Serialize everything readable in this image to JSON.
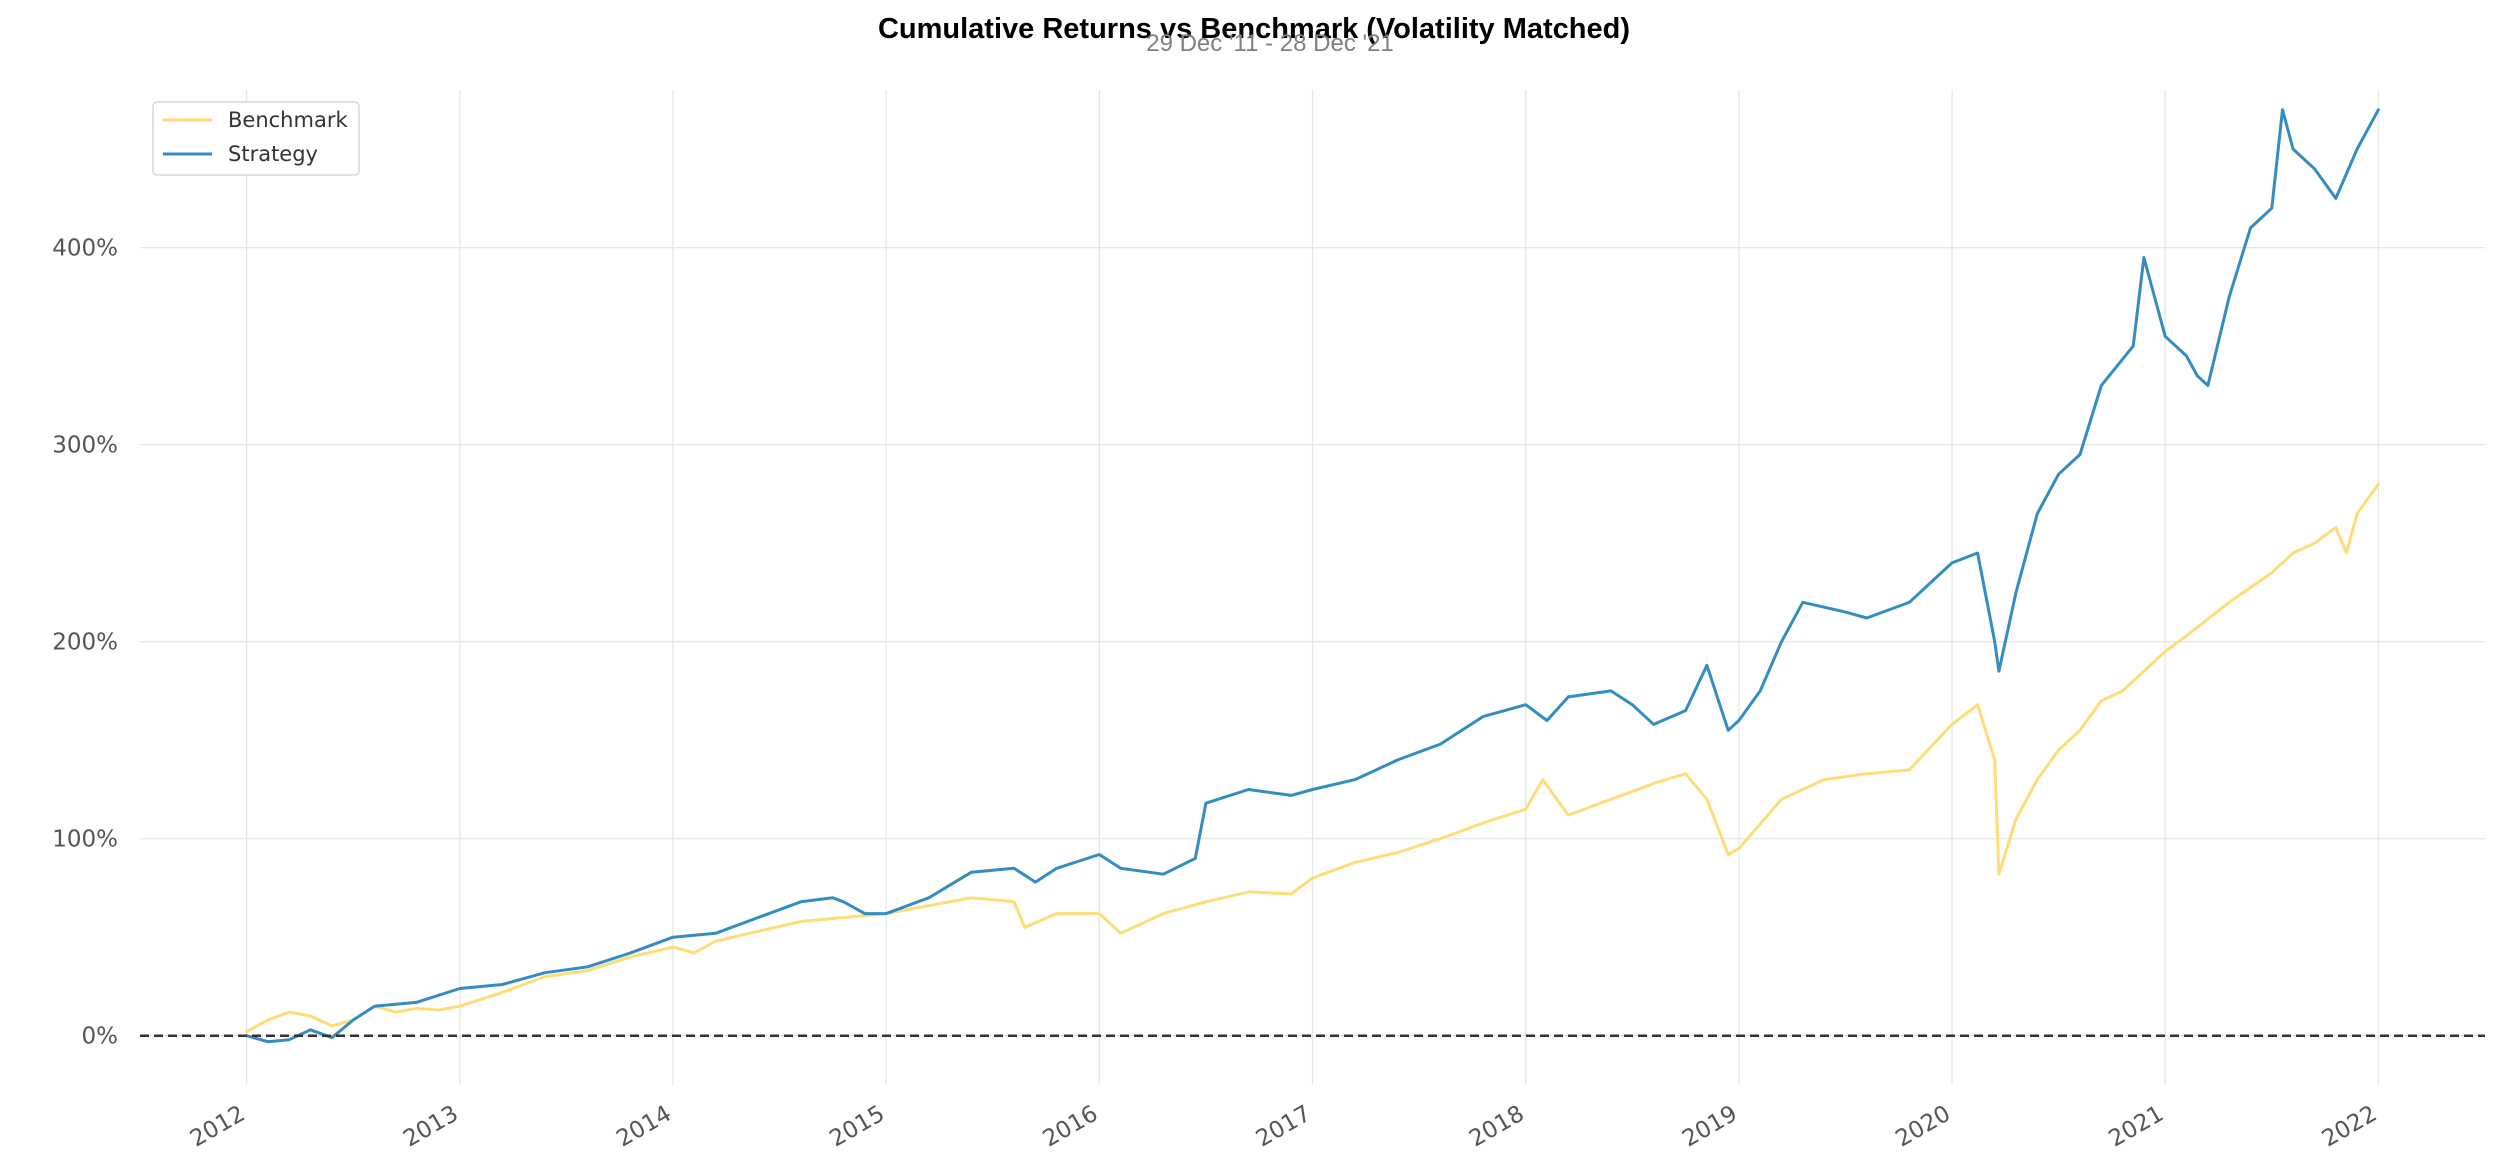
{
  "chart_data": {
    "type": "line",
    "title": "Cumulative Returns vs Benchmark (Volatility Matched)",
    "subtitle": "29 Dec '11 - 28 Dec '21",
    "xlabel": "",
    "ylabel": "",
    "x_ticks": [
      "2012",
      "2013",
      "2014",
      "2015",
      "2016",
      "2017",
      "2018",
      "2019",
      "2020",
      "2021",
      "2022"
    ],
    "y_ticks": [
      "0%",
      "100%",
      "200%",
      "300%",
      "400%"
    ],
    "xlim": [
      2011.5,
      2022.5
    ],
    "ylim": [
      -25,
      480
    ],
    "grid": true,
    "legend": "top-left",
    "baseline": {
      "value": 0,
      "style": "dashed",
      "color": "#333333"
    },
    "series": [
      {
        "name": "Benchmark",
        "color": "#fedd78",
        "x": [
          2012.0,
          2012.1,
          2012.2,
          2012.3,
          2012.4,
          2012.5,
          2012.6,
          2012.7,
          2012.8,
          2012.9,
          2013.0,
          2013.2,
          2013.4,
          2013.6,
          2013.8,
          2014.0,
          2014.1,
          2014.2,
          2014.4,
          2014.6,
          2014.8,
          2015.0,
          2015.2,
          2015.4,
          2015.6,
          2015.65,
          2015.8,
          2016.0,
          2016.1,
          2016.3,
          2016.5,
          2016.7,
          2016.9,
          2017.0,
          2017.2,
          2017.4,
          2017.6,
          2017.8,
          2018.0,
          2018.08,
          2018.2,
          2018.4,
          2018.6,
          2018.75,
          2018.85,
          2018.95,
          2019.0,
          2019.2,
          2019.4,
          2019.6,
          2019.8,
          2020.0,
          2020.12,
          2020.2,
          2020.22,
          2020.3,
          2020.4,
          2020.5,
          2020.6,
          2020.7,
          2020.8,
          2020.9,
          2021.0,
          2021.1,
          2021.3,
          2021.5,
          2021.6,
          2021.7,
          2021.8,
          2021.85,
          2021.9,
          2022.0
        ],
        "values": [
          2,
          8,
          12,
          10,
          5,
          8,
          15,
          12,
          14,
          13,
          15,
          22,
          30,
          33,
          40,
          45,
          42,
          48,
          53,
          58,
          60,
          62,
          66,
          70,
          68,
          55,
          62,
          62,
          52,
          62,
          68,
          73,
          72,
          80,
          88,
          93,
          100,
          108,
          115,
          130,
          112,
          120,
          128,
          133,
          120,
          92,
          95,
          120,
          130,
          133,
          135,
          158,
          168,
          140,
          82,
          110,
          130,
          145,
          155,
          170,
          175,
          185,
          195,
          203,
          220,
          235,
          245,
          250,
          258,
          245,
          265,
          280
        ]
      },
      {
        "name": "Strategy",
        "color": "#348dc1",
        "x": [
          2012.0,
          2012.1,
          2012.2,
          2012.3,
          2012.4,
          2012.5,
          2012.6,
          2012.8,
          2013.0,
          2013.2,
          2013.4,
          2013.6,
          2013.8,
          2014.0,
          2014.2,
          2014.4,
          2014.6,
          2014.75,
          2014.8,
          2014.9,
          2015.0,
          2015.2,
          2015.4,
          2015.6,
          2015.7,
          2015.8,
          2016.0,
          2016.1,
          2016.3,
          2016.45,
          2016.5,
          2016.7,
          2016.9,
          2017.0,
          2017.2,
          2017.4,
          2017.6,
          2017.8,
          2018.0,
          2018.1,
          2018.2,
          2018.4,
          2018.5,
          2018.6,
          2018.75,
          2018.85,
          2018.95,
          2019.0,
          2019.1,
          2019.2,
          2019.3,
          2019.5,
          2019.6,
          2019.8,
          2020.0,
          2020.12,
          2020.2,
          2020.22,
          2020.3,
          2020.4,
          2020.5,
          2020.6,
          2020.7,
          2020.85,
          2020.9,
          2021.0,
          2021.1,
          2021.15,
          2021.2,
          2021.3,
          2021.4,
          2021.5,
          2021.55,
          2021.6,
          2021.7,
          2021.8,
          2021.9,
          2022.0
        ],
        "values": [
          0,
          -3,
          -2,
          3,
          -1,
          8,
          15,
          17,
          24,
          26,
          32,
          35,
          42,
          50,
          52,
          60,
          68,
          70,
          68,
          62,
          62,
          70,
          83,
          85,
          78,
          85,
          92,
          85,
          82,
          90,
          118,
          125,
          122,
          125,
          130,
          140,
          148,
          162,
          168,
          160,
          172,
          175,
          168,
          158,
          165,
          188,
          155,
          160,
          175,
          200,
          220,
          215,
          212,
          220,
          240,
          245,
          200,
          185,
          225,
          265,
          285,
          295,
          330,
          350,
          395,
          355,
          345,
          335,
          330,
          375,
          410,
          420,
          470,
          450,
          440,
          425,
          450,
          470
        ]
      }
    ]
  }
}
